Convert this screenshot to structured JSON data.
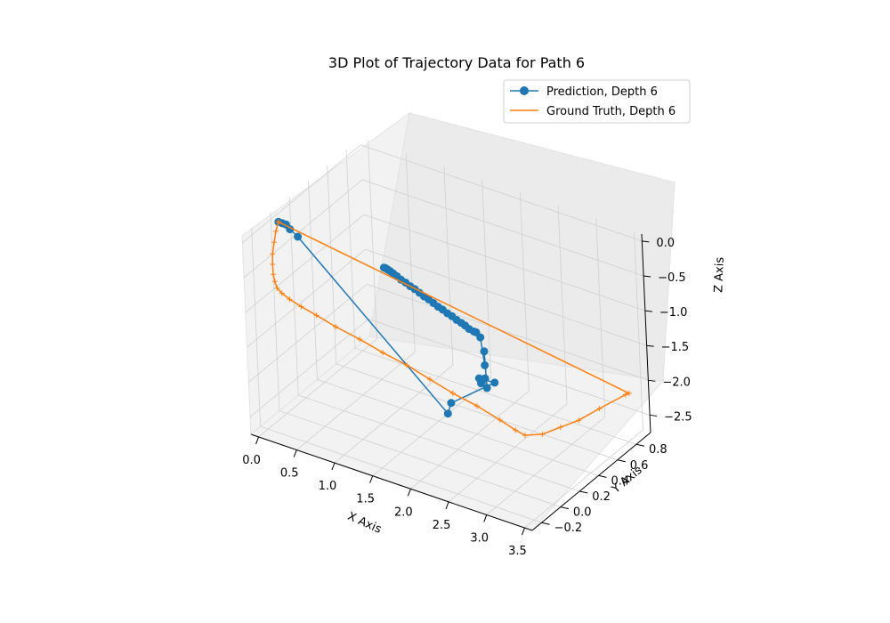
{
  "chart_data": {
    "type": "line3d",
    "title": "3D Plot of Trajectory Data for Path 6",
    "xlabel": "X Axis",
    "ylabel": "Y Axis",
    "zlabel": "Z Axis",
    "xlim": [
      -0.1,
      3.6
    ],
    "ylim": [
      -0.3,
      0.95
    ],
    "zlim": [
      -2.75,
      0.1
    ],
    "xticks": [
      "0.0",
      "0.5",
      "1.0",
      "1.5",
      "2.0",
      "2.5",
      "3.0",
      "3.5"
    ],
    "yticks": [
      "−0.2",
      "0.0",
      "0.2",
      "0.4",
      "0.6",
      "0.8"
    ],
    "zticks": [
      "0.0",
      "−0.5",
      "−1.0",
      "−1.5",
      "−2.0",
      "−2.5"
    ],
    "grid": true,
    "legend_position": "upper-right",
    "series": [
      {
        "name": "Prediction, Depth 6",
        "color": "#1f77b4",
        "marker": "circle",
        "points": [
          [
            0.0,
            0.0,
            0.0
          ],
          [
            0.05,
            0.0,
            0.0
          ],
          [
            0.1,
            0.0,
            0.0
          ],
          [
            0.15,
            0.0,
            -0.05
          ],
          [
            0.25,
            0.0,
            -0.12
          ],
          [
            2.15,
            0.0,
            -1.95
          ],
          [
            2.2,
            0.0,
            -1.78
          ],
          [
            2.4,
            0.3,
            -1.75
          ],
          [
            1.8,
            0.6,
            -2.25
          ],
          [
            1.85,
            0.58,
            -2.28
          ],
          [
            1.88,
            0.6,
            -2.22
          ],
          [
            1.9,
            0.6,
            -2.35
          ],
          [
            1.95,
            0.55,
            -1.75
          ],
          [
            1.95,
            0.55,
            -1.95
          ],
          [
            1.92,
            0.54,
            -1.55
          ],
          [
            1.88,
            0.53,
            -1.48
          ],
          [
            1.85,
            0.53,
            -1.48
          ],
          [
            1.8,
            0.52,
            -1.45
          ],
          [
            1.75,
            0.52,
            -1.42
          ],
          [
            1.7,
            0.52,
            -1.4
          ],
          [
            1.64,
            0.52,
            -1.38
          ],
          [
            1.58,
            0.52,
            -1.35
          ],
          [
            1.52,
            0.52,
            -1.33
          ],
          [
            1.46,
            0.52,
            -1.3
          ],
          [
            1.4,
            0.52,
            -1.28
          ],
          [
            1.34,
            0.52,
            -1.25
          ],
          [
            1.28,
            0.52,
            -1.22
          ],
          [
            1.22,
            0.52,
            -1.2
          ],
          [
            1.16,
            0.52,
            -1.17
          ],
          [
            1.1,
            0.52,
            -1.14
          ],
          [
            1.04,
            0.52,
            -1.12
          ],
          [
            0.98,
            0.52,
            -1.09
          ],
          [
            0.92,
            0.52,
            -1.07
          ],
          [
            0.87,
            0.52,
            -1.04
          ],
          [
            0.82,
            0.52,
            -1.02
          ],
          [
            0.78,
            0.52,
            -1.0
          ],
          [
            0.75,
            0.52,
            -0.99
          ],
          [
            0.72,
            0.52,
            -0.98
          ],
          [
            0.7,
            0.52,
            -0.98
          ]
        ]
      },
      {
        "name": "Ground Truth, Depth 6",
        "color": "#ff7f0e",
        "marker": "none",
        "points": [
          [
            0.0,
            0.0,
            0.0
          ],
          [
            0.0,
            -0.03,
            -0.1
          ],
          [
            0.01,
            -0.06,
            -0.22
          ],
          [
            0.02,
            -0.09,
            -0.35
          ],
          [
            0.04,
            -0.11,
            -0.47
          ],
          [
            0.07,
            -0.13,
            -0.58
          ],
          [
            0.1,
            -0.14,
            -0.66
          ],
          [
            0.14,
            -0.15,
            -0.73
          ],
          [
            0.2,
            -0.15,
            -0.78
          ],
          [
            0.3,
            -0.15,
            -0.83
          ],
          [
            0.45,
            -0.15,
            -0.88
          ],
          [
            0.65,
            -0.15,
            -0.93
          ],
          [
            0.9,
            -0.15,
            -1.0
          ],
          [
            1.2,
            -0.14,
            -1.08
          ],
          [
            1.5,
            -0.14,
            -1.16
          ],
          [
            1.8,
            -0.13,
            -1.24
          ],
          [
            2.1,
            -0.13,
            -1.33
          ],
          [
            2.4,
            -0.13,
            -1.42
          ],
          [
            2.7,
            -0.12,
            -1.5
          ],
          [
            3.0,
            -0.12,
            -1.59
          ],
          [
            3.2,
            -0.12,
            -1.66
          ],
          [
            3.3,
            -0.1,
            -1.72
          ],
          [
            3.4,
            0.0,
            -1.78
          ],
          [
            3.45,
            0.15,
            -1.83
          ],
          [
            3.5,
            0.3,
            -1.88
          ],
          [
            3.52,
            0.5,
            -1.93
          ],
          [
            3.55,
            0.75,
            -2.0
          ],
          [
            3.56,
            0.78,
            -2.01
          ],
          [
            0.0,
            0.0,
            0.0
          ]
        ]
      }
    ]
  }
}
